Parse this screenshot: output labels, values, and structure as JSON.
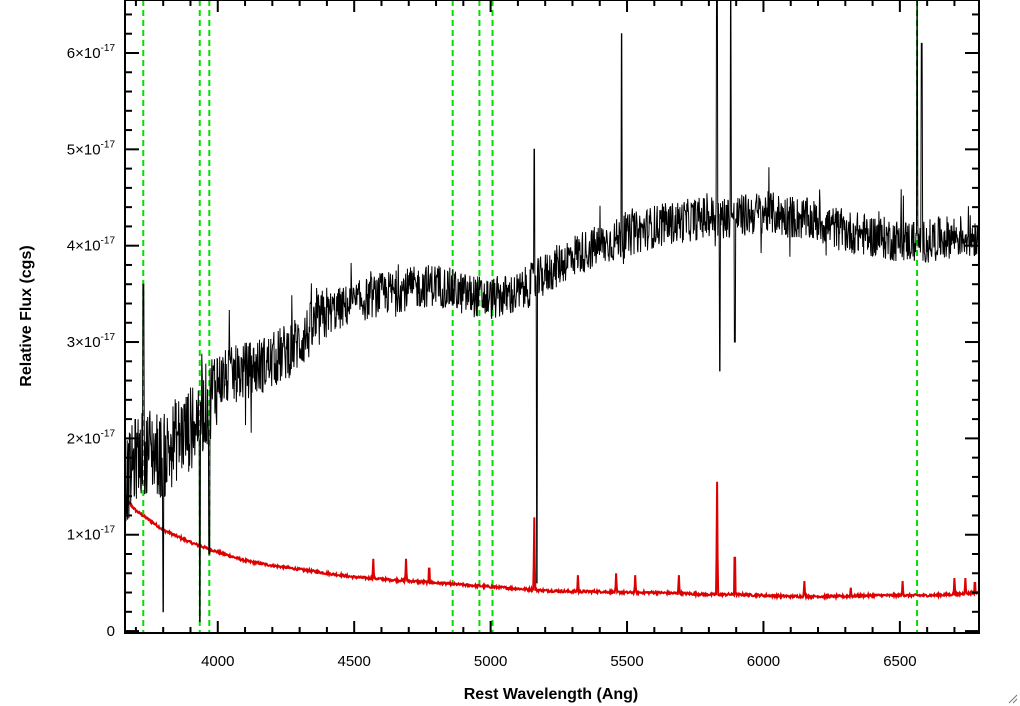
{
  "chart_data": {
    "type": "line",
    "xlabel": "Rest Wavelength (Ang)",
    "ylabel": "Relative Flux (cgs)",
    "xlim": [
      3660,
      6790
    ],
    "ylim": [
      -2e-19,
      6.55e-17
    ],
    "xticks": [
      {
        "value": 4000,
        "label": "4000"
      },
      {
        "value": 4500,
        "label": "4500"
      },
      {
        "value": 5000,
        "label": "5000"
      },
      {
        "value": 5500,
        "label": "5500"
      },
      {
        "value": 6000,
        "label": "6000"
      },
      {
        "value": 6500,
        "label": "6500"
      }
    ],
    "yticks": [
      {
        "value": 0,
        "label": "0",
        "exp": ""
      },
      {
        "value": 1e-17,
        "label": "1×10",
        "exp": "-17"
      },
      {
        "value": 2e-17,
        "label": "2×10",
        "exp": "-17"
      },
      {
        "value": 3e-17,
        "label": "3×10",
        "exp": "-17"
      },
      {
        "value": 4e-17,
        "label": "4×10",
        "exp": "-17"
      },
      {
        "value": 5e-17,
        "label": "5×10",
        "exp": "-17"
      },
      {
        "value": 6e-17,
        "label": "6×10",
        "exp": "-17"
      }
    ],
    "vlines": {
      "color": "#00e000",
      "style": "dashed",
      "x": [
        3727,
        3934,
        3969,
        4861,
        4959,
        5007,
        6563
      ]
    },
    "series": [
      {
        "color": "#000000",
        "style": "noisy",
        "x": [
          3660,
          3700,
          3750,
          3800,
          3850,
          3900,
          3950,
          4000,
          4100,
          4200,
          4300,
          4400,
          4500,
          4600,
          4700,
          4800,
          4900,
          5000,
          5100,
          5200,
          5300,
          5400,
          5500,
          5600,
          5700,
          5800,
          5900,
          6000,
          6100,
          6200,
          6300,
          6400,
          6500,
          6600,
          6700,
          6790
        ],
        "y": [
          1.5e-17,
          1.8e-17,
          1.9e-17,
          1.8e-17,
          2e-17,
          2.1e-17,
          2.3e-17,
          2.6e-17,
          2.7e-17,
          2.8e-17,
          3e-17,
          3.3e-17,
          3.4e-17,
          3.5e-17,
          3.55e-17,
          3.6e-17,
          3.5e-17,
          3.45e-17,
          3.5e-17,
          3.7e-17,
          3.9e-17,
          4e-17,
          4.1e-17,
          4.2e-17,
          4.25e-17,
          4.3e-17,
          4.3e-17,
          4.35e-17,
          4.3e-17,
          4.25e-17,
          4.15e-17,
          4.1e-17,
          4.05e-17,
          4.05e-17,
          4.1e-17,
          4.1e-17
        ],
        "features": [
          {
            "x": 3727,
            "y": 3.6e-17
          },
          {
            "x": 3800,
            "y": 2e-18
          },
          {
            "x": 3934,
            "y": 1e-18
          },
          {
            "x": 3969,
            "y": 8e-18
          },
          {
            "x": 5160,
            "y": 5e-17
          },
          {
            "x": 5170,
            "y": 5e-18
          },
          {
            "x": 5480,
            "y": 6.2e-17
          },
          {
            "x": 5830,
            "y": 6.55e-17
          },
          {
            "x": 5840,
            "y": 2.7e-17
          },
          {
            "x": 5880,
            "y": 6.55e-17
          },
          {
            "x": 5895,
            "y": 3e-17
          },
          {
            "x": 6563,
            "y": 6.55e-17
          },
          {
            "x": 6580,
            "y": 6.1e-17
          }
        ]
      },
      {
        "color": "#dd0000",
        "style": "smooth",
        "x": [
          3660,
          3700,
          3800,
          3900,
          4000,
          4100,
          4200,
          4300,
          4400,
          4500,
          4600,
          4700,
          4800,
          4900,
          5000,
          5100,
          5200,
          5300,
          5400,
          5500,
          5600,
          5700,
          5800,
          5900,
          6000,
          6100,
          6200,
          6300,
          6400,
          6500,
          6600,
          6700,
          6790
        ],
        "y": [
          1.38e-17,
          1.25e-17,
          1.05e-17,
          9.2e-18,
          8.2e-18,
          7.3e-18,
          6.8e-18,
          6.4e-18,
          6e-18,
          5.6e-18,
          5.4e-18,
          5.2e-18,
          5e-18,
          4.8e-18,
          4.6e-18,
          4.4e-18,
          4.2e-18,
          4.1e-18,
          4.1e-18,
          4e-18,
          4e-18,
          3.9e-18,
          3.8e-18,
          3.8e-18,
          3.7e-18,
          3.6e-18,
          3.6e-18,
          3.6e-18,
          3.7e-18,
          3.7e-18,
          3.7e-18,
          3.8e-18,
          4e-18
        ],
        "peaks": [
          {
            "x": 4570,
            "y": 7.5e-18
          },
          {
            "x": 4690,
            "y": 7.5e-18
          },
          {
            "x": 4775,
            "y": 7.2e-18
          },
          {
            "x": 5160,
            "y": 1.18e-17
          },
          {
            "x": 5320,
            "y": 5.8e-18
          },
          {
            "x": 5460,
            "y": 6e-18
          },
          {
            "x": 5530,
            "y": 5.8e-18
          },
          {
            "x": 5690,
            "y": 5.8e-18
          },
          {
            "x": 5830,
            "y": 1.55e-17
          },
          {
            "x": 5895,
            "y": 9.5e-18
          },
          {
            "x": 6150,
            "y": 5.2e-18
          },
          {
            "x": 6320,
            "y": 4.5e-18
          },
          {
            "x": 6510,
            "y": 5.2e-18
          },
          {
            "x": 6700,
            "y": 5.5e-18
          },
          {
            "x": 6740,
            "y": 5.5e-18
          },
          {
            "x": 6775,
            "y": 5.5e-18
          }
        ]
      }
    ]
  }
}
